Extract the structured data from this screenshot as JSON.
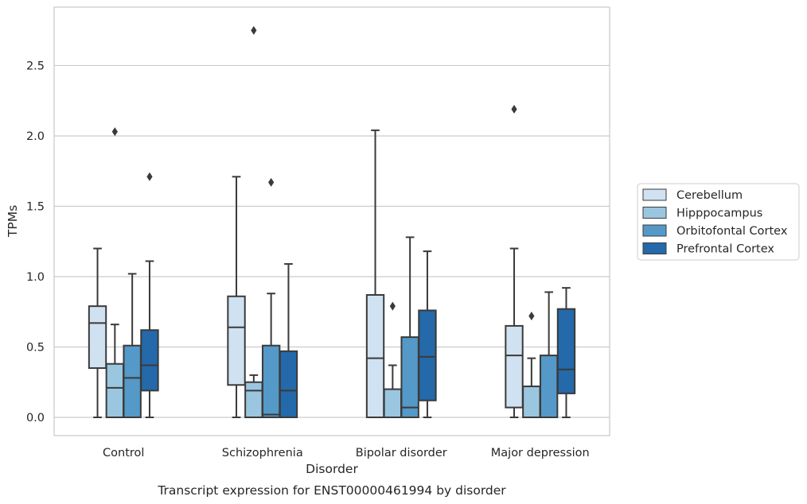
{
  "chart_data": {
    "type": "box",
    "title": "",
    "caption": "Transcript expression for ENST00000461994 by disorder",
    "xlabel": "Disorder",
    "ylabel": "TPMs",
    "ylim": [
      -0.13,
      2.915
    ],
    "yticks": [
      0.0,
      0.5,
      1.0,
      1.5,
      2.0,
      2.5
    ],
    "ytick_labels": [
      "0.0",
      "0.5",
      "1.0",
      "1.5",
      "2.0",
      "2.5"
    ],
    "grid": "horizontal",
    "legend_position": "right",
    "categories": [
      "Control",
      "Schizophrenia",
      "Bipolar disorder",
      "Major depression"
    ],
    "series": [
      {
        "name": "Cerebellum",
        "color": "#d0e1f1",
        "boxes": [
          {
            "whisker_low": 0.0,
            "q1": 0.35,
            "median": 0.67,
            "q3": 0.79,
            "whisker_high": 1.2,
            "outliers": []
          },
          {
            "whisker_low": 0.0,
            "q1": 0.23,
            "median": 0.64,
            "q3": 0.86,
            "whisker_high": 1.71,
            "outliers": []
          },
          {
            "whisker_low": 0.0,
            "q1": 0.0,
            "median": 0.42,
            "q3": 0.87,
            "whisker_high": 2.04,
            "outliers": []
          },
          {
            "whisker_low": 0.0,
            "q1": 0.07,
            "median": 0.44,
            "q3": 0.65,
            "whisker_high": 1.2,
            "outliers": [
              2.19
            ]
          }
        ]
      },
      {
        "name": "Hipppocampus",
        "color": "#9bc6e0",
        "boxes": [
          {
            "whisker_low": 0.0,
            "q1": 0.0,
            "median": 0.21,
            "q3": 0.38,
            "whisker_high": 0.66,
            "outliers": [
              2.03
            ]
          },
          {
            "whisker_low": 0.0,
            "q1": 0.0,
            "median": 0.19,
            "q3": 0.25,
            "whisker_high": 0.3,
            "outliers": [
              2.75
            ]
          },
          {
            "whisker_low": 0.0,
            "q1": 0.0,
            "median": 0.0,
            "q3": 0.2,
            "whisker_high": 0.37,
            "outliers": [
              0.79
            ]
          },
          {
            "whisker_low": 0.0,
            "q1": 0.0,
            "median": 0.0,
            "q3": 0.22,
            "whisker_high": 0.42,
            "outliers": [
              0.72
            ]
          }
        ]
      },
      {
        "name": "Orbitofontal Cortex",
        "color": "#5499c8",
        "boxes": [
          {
            "whisker_low": 0.0,
            "q1": 0.0,
            "median": 0.28,
            "q3": 0.51,
            "whisker_high": 1.02,
            "outliers": []
          },
          {
            "whisker_low": 0.0,
            "q1": 0.0,
            "median": 0.02,
            "q3": 0.51,
            "whisker_high": 0.88,
            "outliers": [
              1.67
            ]
          },
          {
            "whisker_low": 0.0,
            "q1": 0.0,
            "median": 0.07,
            "q3": 0.57,
            "whisker_high": 1.28,
            "outliers": []
          },
          {
            "whisker_low": 0.0,
            "q1": 0.0,
            "median": 0.0,
            "q3": 0.44,
            "whisker_high": 0.89,
            "outliers": []
          }
        ]
      },
      {
        "name": "Prefrontal Cortex",
        "color": "#2469a9",
        "boxes": [
          {
            "whisker_low": 0.0,
            "q1": 0.19,
            "median": 0.37,
            "q3": 0.62,
            "whisker_high": 1.11,
            "outliers": [
              1.71
            ]
          },
          {
            "whisker_low": 0.0,
            "q1": 0.0,
            "median": 0.19,
            "q3": 0.47,
            "whisker_high": 1.09,
            "outliers": []
          },
          {
            "whisker_low": 0.0,
            "q1": 0.12,
            "median": 0.43,
            "q3": 0.76,
            "whisker_high": 1.18,
            "outliers": []
          },
          {
            "whisker_low": 0.0,
            "q1": 0.17,
            "median": 0.34,
            "q3": 0.77,
            "whisker_high": 0.92,
            "outliers": []
          }
        ]
      }
    ]
  },
  "colors": {
    "grid": "#cccccc",
    "frame": "#cccccc",
    "box_edge": "#3a3a3a",
    "text": "#262626"
  }
}
